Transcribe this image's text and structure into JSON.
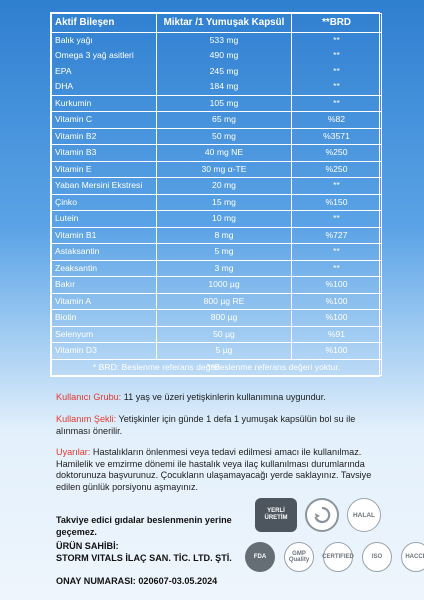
{
  "table": {
    "headers": [
      "Aktif Bileşen",
      "Miktar /1 Yumuşak Kapsül",
      "**BRD"
    ],
    "rows": [
      [
        "Balık yağı",
        "533 mg",
        "**"
      ],
      [
        "Omega 3 yağ asitleri",
        "490 mg",
        "**"
      ],
      [
        "EPA",
        "245 mg",
        "**"
      ],
      [
        "DHA",
        "184 mg",
        "**"
      ],
      [
        "Kurkumin",
        "105 mg",
        "**"
      ],
      [
        "Vitamin C",
        "65 mg",
        "%82"
      ],
      [
        "Vitamin B2",
        "50 mg",
        "%3571"
      ],
      [
        "Vitamin B3",
        "40 mg NE",
        "%250"
      ],
      [
        "Vitamin E",
        "30 mg α-TE",
        "%250"
      ],
      [
        "Yaban Mersini Ekstresi",
        "20 mg",
        "**"
      ],
      [
        "Çinko",
        "15 mg",
        "%150"
      ],
      [
        "Lutein",
        "10 mg",
        "**"
      ],
      [
        "Vitamin B1",
        "8 mg",
        "%727"
      ],
      [
        "Astaksantin",
        "5 mg",
        "**"
      ],
      [
        "Zeaksantin",
        "3 mg",
        "**"
      ],
      [
        "Bakır",
        "1000 µg",
        "%100"
      ],
      [
        "Vitamin A",
        "800 µg RE",
        "%100"
      ],
      [
        "Biotin",
        "800 µg",
        "%100"
      ],
      [
        "Selenyum",
        "50 µg",
        "%91"
      ],
      [
        "Vitamin D3",
        "5 µg",
        "%100"
      ]
    ],
    "footnote_1": "* BRD: Beslenme referans değeri",
    "footnote_2": "**Beslenme referans değeri yoktur."
  },
  "info": {
    "kullanici_label": "Kullanıcı Grubu:",
    "kullanici_text": " 11 yaş ve üzeri yetişkinlerin kullanımına uygundur.",
    "kullanim_label": "Kullanım Şekli:",
    "kullanim_text": " Yetişkinler için günde 1 defa 1 yumuşak kapsülün bol su ile alınması önerilir.",
    "uyari_label": "Uyarılar:",
    "uyari_text": " Hastalıkların önlenmesi veya tedavi edilmesi amacı ile kullanılmaz. Hamilelik ve emzirme dönemi ile hastalık veya ilaç kullanılması durumlarında doktorunuza başvurunuz. Çocukların ulaşamayacağı yerde saklayınız. Tavsiye edilen günlük porsiyonu aşmayınız.",
    "takviye": "Takviye edici gıdalar beslenmenin yerine geçemez.",
    "urun_sahibi_label": "ÜRÜN SAHİBİ:",
    "urun_sahibi": "STORM VITALS İLAÇ SAN. TİC. LTD. ŞTİ.",
    "onay": "ONAY NUMARASI: 020607-03.05.2024"
  },
  "badges": {
    "yerli": "YERLİ ÜRETİM",
    "helal": "HALAL",
    "fda": "FDA",
    "gmp": "GMP Quality",
    "cert": "CERTIFIED",
    "iso": "ISO",
    "haccp": "HACCP"
  }
}
